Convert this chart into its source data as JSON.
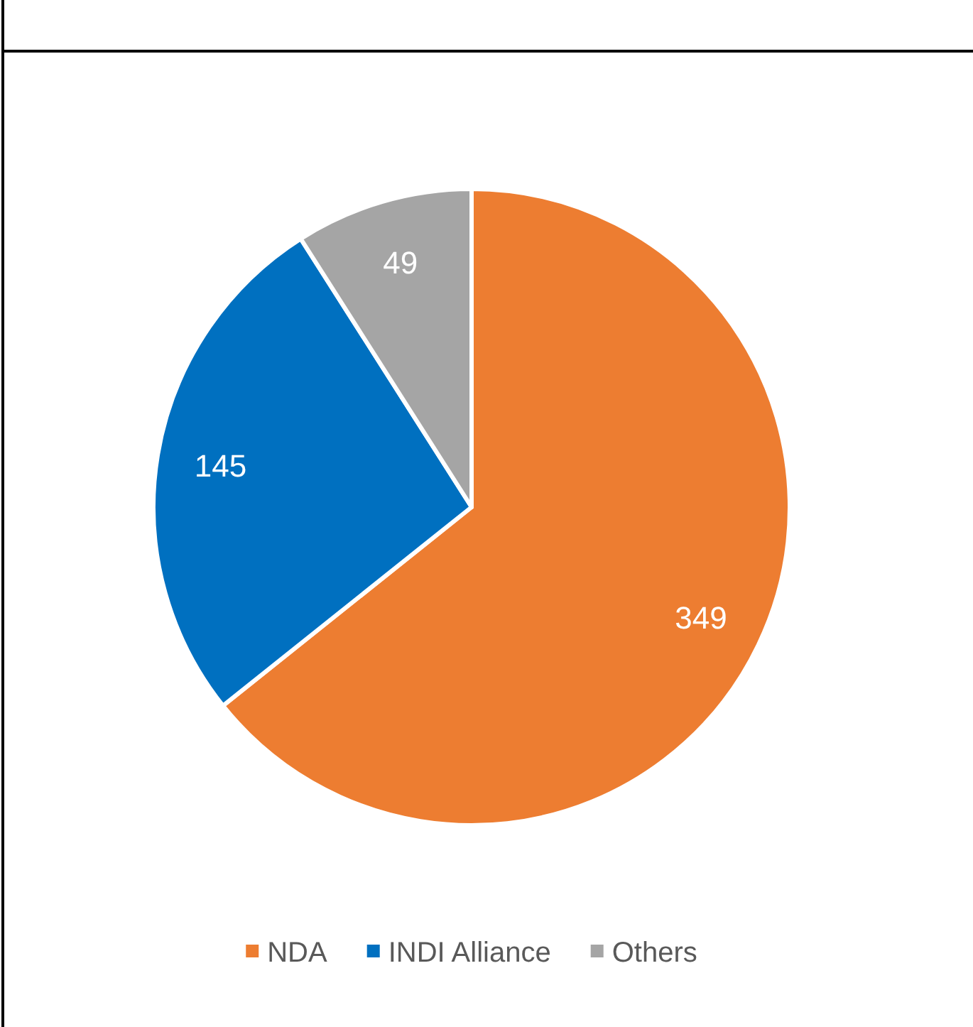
{
  "chart_data": {
    "type": "pie",
    "categories": [
      "NDA",
      "INDI Alliance",
      "Others"
    ],
    "values": [
      349,
      145,
      49
    ],
    "colors": [
      "#ed7d31",
      "#0070c0",
      "#a5a5a5"
    ],
    "data_labels": true,
    "legend": "bottom"
  }
}
